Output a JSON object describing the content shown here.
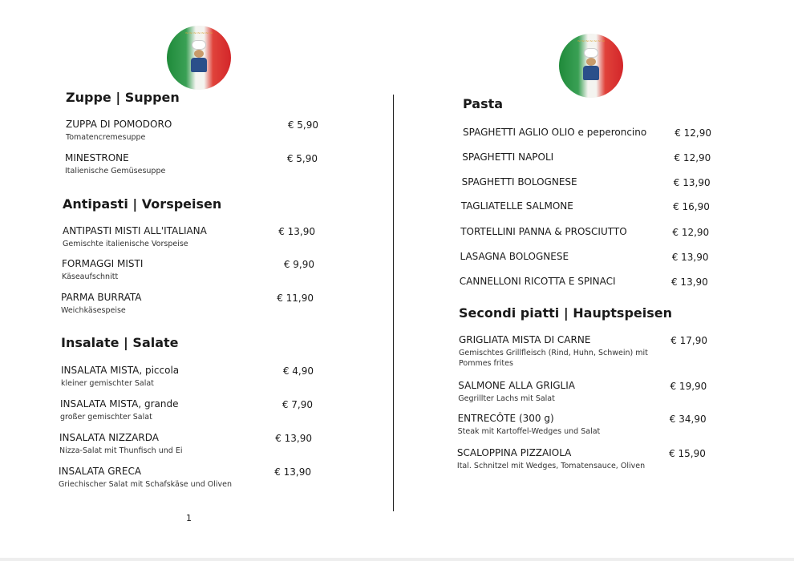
{
  "logo": {
    "text": "Mamma Mia Food & Bar",
    "subtext": "Pizza Pasta Bowling"
  },
  "left": {
    "sections": [
      {
        "title": "Zuppe | Suppen",
        "items": [
          {
            "name": "ZUPPA DI POMODORO",
            "desc": "Tomatencremesuppe",
            "price": "€ 5,90"
          },
          {
            "name": "MINESTRONE",
            "desc": "Italienische Gemüsesuppe",
            "price": "€ 5,90"
          }
        ]
      },
      {
        "title": "Antipasti | Vorspeisen",
        "items": [
          {
            "name": "ANTIPASTI MISTI ALL'ITALIANA",
            "desc": "Gemischte italienische Vorspeise",
            "price": "€ 13,90"
          },
          {
            "name": "FORMAGGI MISTI",
            "desc": "Käseaufschnitt",
            "price": "€ 9,90"
          },
          {
            "name": "PARMA BURRATA",
            "desc": "Weichkäsespeise",
            "price": "€ 11,90"
          }
        ]
      },
      {
        "title": "Insalate | Salate",
        "items": [
          {
            "name": "INSALATA MISTA, piccola",
            "desc": "kleiner gemischter Salat",
            "price": "€ 4,90"
          },
          {
            "name": "INSALATA MISTA, grande",
            "desc": "großer gemischter Salat",
            "price": "€ 7,90"
          },
          {
            "name": "INSALATA NIZZARDA",
            "desc": "Nizza-Salat mit Thunfisch und Ei",
            "price": "€ 13,90"
          },
          {
            "name": "INSALATA GRECA",
            "desc": "Griechischer Salat mit Schafskäse und Oliven",
            "price": "€ 13,90"
          }
        ]
      }
    ],
    "page_number": "1"
  },
  "right": {
    "sections": [
      {
        "title": "Pasta",
        "items": [
          {
            "name": "SPAGHETTI AGLIO OLIO e peperoncino",
            "desc": "",
            "price": "€ 12,90"
          },
          {
            "name": "SPAGHETTI NAPOLI",
            "desc": "",
            "price": "€ 12,90"
          },
          {
            "name": "SPAGHETTI BOLOGNESE",
            "desc": "",
            "price": "€ 13,90"
          },
          {
            "name": "TAGLIATELLE SALMONE",
            "desc": "",
            "price": "€ 16,90"
          },
          {
            "name": "TORTELLINI PANNA & PROSCIUTTO",
            "desc": "",
            "price": "€ 12,90"
          },
          {
            "name": "LASAGNA BOLOGNESE",
            "desc": "",
            "price": "€ 13,90"
          },
          {
            "name": "CANNELLONI RICOTTA E SPINACI",
            "desc": "",
            "price": "€ 13,90"
          }
        ]
      },
      {
        "title": "Secondi piatti | Hauptspeisen",
        "items": [
          {
            "name": "GRIGLIATA MISTA DI CARNE",
            "desc": "Gemischtes Grillfleisch (Rind, Huhn, Schwein) mit Pommes frites",
            "price": "€ 17,90"
          },
          {
            "name": "SALMONE ALLA GRIGLIA",
            "desc": "Gegrillter Lachs mit Salat",
            "price": "€ 19,90"
          },
          {
            "name": "ENTRECÔTE (300 g)",
            "desc": "Steak mit Kartoffel-Wedges und Salat",
            "price": "€ 34,90"
          },
          {
            "name": "SCALOPPINA PIZZAIOLA",
            "desc": "Ital. Schnitzel mit Wedges, Tomatensauce, Oliven",
            "price": "€ 15,90"
          }
        ]
      }
    ]
  }
}
